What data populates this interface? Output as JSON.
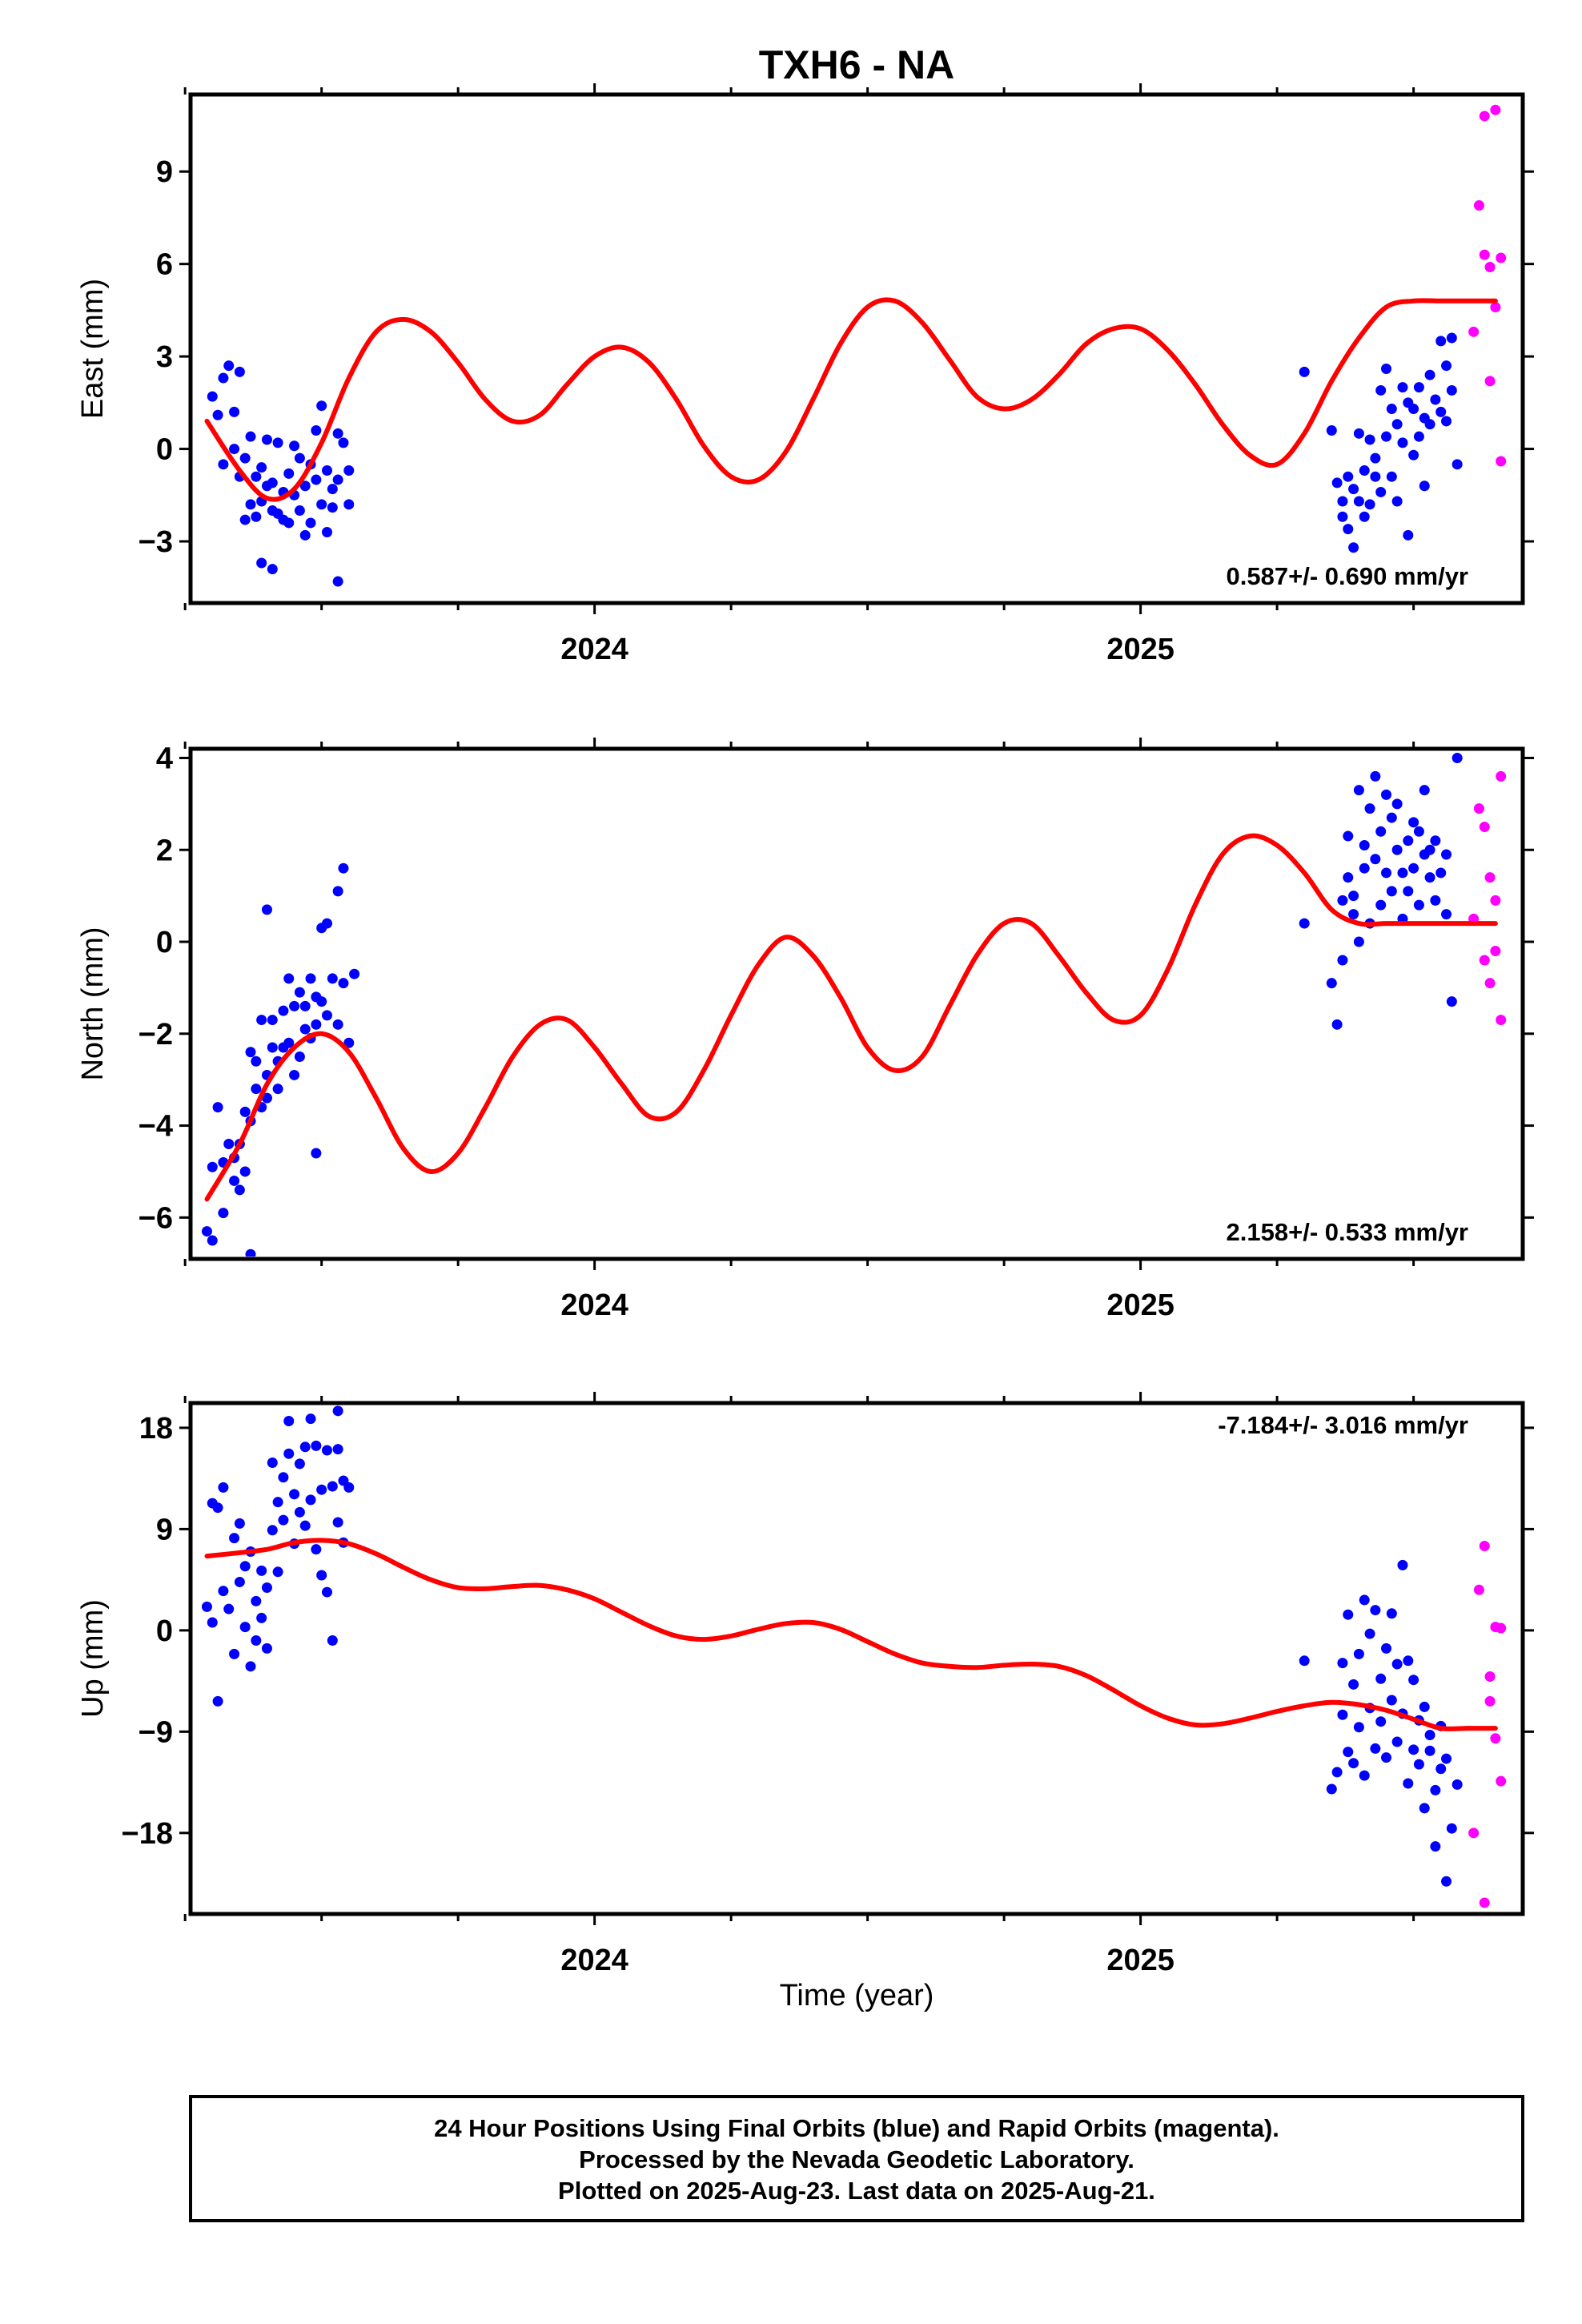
{
  "title": "TXH6 - NA",
  "xlabel": "Time (year)",
  "x_tick_labels": [
    "2024",
    "2025"
  ],
  "colors": {
    "final": "#0000ff",
    "rapid": "#ff00ff",
    "model": "#ff0000",
    "frame": "#000000"
  },
  "footer": {
    "line1": "24 Hour Positions Using Final Orbits (blue) and Rapid Orbits (magenta).",
    "line2": "Processed by the Nevada Geodetic Laboratory.",
    "line3": "Plotted on 2025-Aug-23. Last data on 2025-Aug-21."
  },
  "chart_data": [
    {
      "type": "scatter",
      "ylabel": "East (mm)",
      "rate": "0.587+/- 0.690 mm/yr",
      "xlim": [
        2023.26,
        2025.7
      ],
      "ylim": [
        -5.0,
        11.5
      ],
      "yticks": [
        -3,
        0,
        3,
        6,
        9
      ],
      "ytick_labels": [
        "−3",
        "0",
        "3",
        "6",
        "9"
      ],
      "model": {
        "name": "model fit",
        "x": [
          2023.29,
          2023.35,
          2023.4,
          2023.45,
          2023.5,
          2023.55,
          2023.6,
          2023.65,
          2023.7,
          2023.75,
          2023.8,
          2023.85,
          2023.9,
          2023.95,
          2024.0,
          2024.05,
          2024.1,
          2024.15,
          2024.2,
          2024.25,
          2024.3,
          2024.35,
          2024.4,
          2024.45,
          2024.5,
          2024.55,
          2024.6,
          2024.65,
          2024.7,
          2024.75,
          2024.8,
          2024.85,
          2024.9,
          2024.95,
          2025.0,
          2025.05,
          2025.1,
          2025.15,
          2025.2,
          2025.25,
          2025.3,
          2025.35,
          2025.4,
          2025.45,
          2025.5,
          2025.55,
          2025.6,
          2025.65
        ],
        "y": [
          0.9,
          -0.7,
          -1.6,
          -1.3,
          0.2,
          2.3,
          3.8,
          4.2,
          3.8,
          2.8,
          1.6,
          0.9,
          1.1,
          2.1,
          3.0,
          3.3,
          2.8,
          1.6,
          0.1,
          -0.9,
          -1.0,
          -0.1,
          1.6,
          3.4,
          4.6,
          4.8,
          4.1,
          2.9,
          1.7,
          1.3,
          1.6,
          2.4,
          3.4,
          3.9,
          3.9,
          3.2,
          2.1,
          0.8,
          -0.2,
          -0.5,
          0.5,
          2.2,
          3.6,
          4.6,
          4.8,
          4.8,
          4.8,
          4.8
        ]
      },
      "series": [
        {
          "name": "Final Orbits",
          "x": [
            2023.3,
            2023.31,
            2023.32,
            2023.32,
            2023.33,
            2023.34,
            2023.34,
            2023.35,
            2023.35,
            2023.36,
            2023.36,
            2023.37,
            2023.37,
            2023.38,
            2023.38,
            2023.39,
            2023.39,
            2023.4,
            2023.4,
            2023.41,
            2023.41,
            2023.42,
            2023.42,
            2023.43,
            2023.43,
            2023.44,
            2023.44,
            2023.45,
            2023.45,
            2023.46,
            2023.46,
            2023.47,
            2023.47,
            2023.48,
            2023.48,
            2023.49,
            2023.49,
            2023.5,
            2023.5,
            2023.51,
            2023.51,
            2023.52,
            2023.52,
            2023.53,
            2023.53,
            2023.54,
            2023.55,
            2023.55,
            2023.41,
            2023.39,
            2023.53,
            2025.3,
            2025.35,
            2025.36,
            2025.37,
            2025.37,
            2025.38,
            2025.38,
            2025.39,
            2025.39,
            2025.4,
            2025.4,
            2025.41,
            2025.41,
            2025.42,
            2025.42,
            2025.43,
            2025.43,
            2025.44,
            2025.44,
            2025.45,
            2025.45,
            2025.46,
            2025.46,
            2025.47,
            2025.47,
            2025.48,
            2025.48,
            2025.49,
            2025.49,
            2025.5,
            2025.5,
            2025.51,
            2025.51,
            2025.52,
            2025.52,
            2025.53,
            2025.53,
            2025.54,
            2025.55,
            2025.55,
            2025.56,
            2025.56,
            2025.57,
            2025.57,
            2025.58
          ],
          "y": [
            1.7,
            1.1,
            2.3,
            -0.5,
            2.7,
            1.2,
            0.0,
            2.5,
            -0.9,
            -0.3,
            -2.3,
            -1.8,
            0.4,
            -0.9,
            -2.2,
            -0.6,
            -1.7,
            0.3,
            -1.2,
            -2.0,
            -1.1,
            -2.1,
            0.2,
            -1.4,
            -2.3,
            -0.8,
            -2.4,
            0.1,
            -1.5,
            -2.0,
            -0.3,
            -2.8,
            -1.2,
            -0.5,
            -2.4,
            0.6,
            -1.0,
            -1.8,
            1.4,
            -2.7,
            -0.7,
            -1.9,
            -1.3,
            0.5,
            -1.0,
            0.2,
            -1.8,
            -0.7,
            -3.9,
            -3.7,
            -4.3,
            2.5,
            0.6,
            -1.1,
            -1.7,
            -2.2,
            -0.9,
            -2.6,
            -1.3,
            -3.2,
            0.5,
            -1.7,
            -0.7,
            -2.2,
            0.3,
            -1.8,
            -0.3,
            -0.9,
            1.9,
            -1.4,
            2.6,
            0.4,
            1.3,
            -0.9,
            0.8,
            -1.7,
            2.0,
            0.2,
            1.5,
            -2.8,
            1.3,
            -0.2,
            2.0,
            0.4,
            1.0,
            -1.2,
            2.4,
            0.8,
            1.6,
            3.5,
            1.2,
            2.7,
            0.9,
            3.6,
            1.9,
            -0.5
          ]
        },
        {
          "name": "Rapid Orbits",
          "x": [
            2025.61,
            2025.62,
            2025.63,
            2025.63,
            2025.64,
            2025.64,
            2025.65,
            2025.65,
            2025.66,
            2025.66
          ],
          "y": [
            3.8,
            7.9,
            10.8,
            6.3,
            5.9,
            2.2,
            11.0,
            4.6,
            6.2,
            -0.4
          ]
        }
      ]
    },
    {
      "type": "scatter",
      "ylabel": "North (mm)",
      "rate": "2.158+/- 0.533 mm/yr",
      "xlim": [
        2023.26,
        2025.7
      ],
      "ylim": [
        -6.9,
        4.2
      ],
      "yticks": [
        -6,
        -4,
        -2,
        0,
        2,
        4
      ],
      "ytick_labels": [
        "−6",
        "−4",
        "−2",
        "0",
        "2",
        "4"
      ],
      "model": {
        "name": "model fit",
        "x": [
          2023.29,
          2023.35,
          2023.4,
          2023.45,
          2023.5,
          2023.55,
          2023.6,
          2023.65,
          2023.7,
          2023.75,
          2023.8,
          2023.85,
          2023.9,
          2023.95,
          2024.0,
          2024.05,
          2024.1,
          2024.15,
          2024.2,
          2024.25,
          2024.3,
          2024.35,
          2024.4,
          2024.45,
          2024.5,
          2024.55,
          2024.6,
          2024.65,
          2024.7,
          2024.75,
          2024.8,
          2024.85,
          2024.9,
          2024.95,
          2025.0,
          2025.05,
          2025.1,
          2025.15,
          2025.2,
          2025.25,
          2025.3,
          2025.35,
          2025.4,
          2025.45,
          2025.5,
          2025.55,
          2025.6,
          2025.65
        ],
        "y": [
          -5.6,
          -4.4,
          -3.1,
          -2.3,
          -2.0,
          -2.4,
          -3.4,
          -4.5,
          -5.0,
          -4.6,
          -3.6,
          -2.5,
          -1.8,
          -1.7,
          -2.3,
          -3.1,
          -3.8,
          -3.7,
          -2.8,
          -1.6,
          -0.5,
          0.1,
          -0.3,
          -1.2,
          -2.3,
          -2.8,
          -2.5,
          -1.4,
          -0.3,
          0.4,
          0.4,
          -0.3,
          -1.1,
          -1.7,
          -1.6,
          -0.6,
          0.8,
          1.9,
          2.3,
          2.1,
          1.5,
          0.7,
          0.4,
          0.4,
          0.4,
          0.4,
          0.4,
          0.4
        ]
      },
      "series": [
        {
          "name": "Final Orbits",
          "x": [
            2023.29,
            2023.3,
            2023.3,
            2023.31,
            2023.32,
            2023.32,
            2023.33,
            2023.34,
            2023.34,
            2023.35,
            2023.35,
            2023.36,
            2023.36,
            2023.37,
            2023.37,
            2023.38,
            2023.38,
            2023.39,
            2023.39,
            2023.4,
            2023.4,
            2023.41,
            2023.41,
            2023.42,
            2023.42,
            2023.43,
            2023.43,
            2023.44,
            2023.44,
            2023.45,
            2023.45,
            2023.46,
            2023.46,
            2023.47,
            2023.47,
            2023.48,
            2023.48,
            2023.49,
            2023.49,
            2023.5,
            2023.5,
            2023.51,
            2023.51,
            2023.52,
            2023.53,
            2023.53,
            2023.54,
            2023.54,
            2023.55,
            2023.56,
            2023.37,
            2023.4,
            2023.49,
            2025.3,
            2025.35,
            2025.36,
            2025.37,
            2025.37,
            2025.38,
            2025.38,
            2025.39,
            2025.39,
            2025.4,
            2025.4,
            2025.41,
            2025.41,
            2025.42,
            2025.42,
            2025.43,
            2025.43,
            2025.44,
            2025.44,
            2025.45,
            2025.45,
            2025.46,
            2025.46,
            2025.47,
            2025.47,
            2025.48,
            2025.48,
            2025.49,
            2025.49,
            2025.5,
            2025.5,
            2025.51,
            2025.51,
            2025.52,
            2025.52,
            2025.53,
            2025.53,
            2025.54,
            2025.54,
            2025.55,
            2025.56,
            2025.56,
            2025.57,
            2025.58
          ],
          "y": [
            -6.3,
            -4.9,
            -6.5,
            -3.6,
            -4.8,
            -5.9,
            -4.4,
            -4.7,
            -5.2,
            -4.4,
            -5.4,
            -3.7,
            -5.0,
            -2.4,
            -3.9,
            -2.6,
            -3.2,
            -1.7,
            -3.6,
            -2.9,
            -3.4,
            -2.3,
            -1.7,
            -2.6,
            -3.2,
            -1.5,
            -2.3,
            -0.8,
            -2.2,
            -1.4,
            -2.9,
            -1.1,
            -2.5,
            -1.9,
            -1.4,
            -0.8,
            -2.1,
            -1.2,
            -1.8,
            -1.3,
            0.3,
            -1.6,
            0.4,
            -0.8,
            1.1,
            -1.8,
            1.6,
            -0.9,
            -2.2,
            -0.7,
            -6.8,
            0.7,
            -4.6,
            0.4,
            -0.9,
            -1.8,
            0.9,
            -0.4,
            1.4,
            2.3,
            0.6,
            1.0,
            3.3,
            0.0,
            2.1,
            1.6,
            2.9,
            0.4,
            1.8,
            3.6,
            2.4,
            0.8,
            3.2,
            1.5,
            2.7,
            1.1,
            2.0,
            3.0,
            1.5,
            0.5,
            2.2,
            1.1,
            2.6,
            1.6,
            2.4,
            0.8,
            1.9,
            3.3,
            1.4,
            2.0,
            0.9,
            2.2,
            1.5,
            0.6,
            1.9,
            -1.3,
            4.0
          ]
        },
        {
          "name": "Rapid Orbits",
          "x": [
            2025.61,
            2025.62,
            2025.63,
            2025.63,
            2025.64,
            2025.64,
            2025.65,
            2025.65,
            2025.66,
            2025.66
          ],
          "y": [
            0.5,
            2.9,
            -0.4,
            2.5,
            1.4,
            -0.9,
            0.9,
            -0.2,
            3.6,
            -1.7
          ]
        }
      ]
    },
    {
      "type": "scatter",
      "ylabel": "Up (mm)",
      "rate": "-7.184+/- 3.016 mm/yr",
      "xlim": [
        2023.26,
        2025.7
      ],
      "ylim": [
        -25.2,
        20.2
      ],
      "yticks": [
        -18,
        -9,
        0,
        9,
        18
      ],
      "ytick_labels": [
        "−18",
        "−9",
        "0",
        "9",
        "18"
      ],
      "model": {
        "name": "model fit",
        "x": [
          2023.29,
          2023.35,
          2023.4,
          2023.45,
          2023.5,
          2023.55,
          2023.6,
          2023.65,
          2023.7,
          2023.75,
          2023.8,
          2023.85,
          2023.9,
          2023.95,
          2024.0,
          2024.05,
          2024.1,
          2024.15,
          2024.2,
          2024.25,
          2024.3,
          2024.35,
          2024.4,
          2024.45,
          2024.5,
          2024.55,
          2024.6,
          2024.65,
          2024.7,
          2024.75,
          2024.8,
          2024.85,
          2024.9,
          2024.95,
          2025.0,
          2025.05,
          2025.1,
          2025.15,
          2025.2,
          2025.25,
          2025.3,
          2025.35,
          2025.4,
          2025.45,
          2025.5,
          2025.55,
          2025.6,
          2025.65
        ],
        "y": [
          6.6,
          6.9,
          7.2,
          7.8,
          8.0,
          7.7,
          6.8,
          5.6,
          4.5,
          3.8,
          3.7,
          3.9,
          4.0,
          3.6,
          2.8,
          1.6,
          0.4,
          -0.5,
          -0.8,
          -0.5,
          0.1,
          0.6,
          0.7,
          0.1,
          -1.0,
          -2.1,
          -2.9,
          -3.2,
          -3.3,
          -3.1,
          -3.0,
          -3.2,
          -4.0,
          -5.3,
          -6.7,
          -7.8,
          -8.4,
          -8.3,
          -7.8,
          -7.2,
          -6.7,
          -6.4,
          -6.6,
          -7.1,
          -7.9,
          -8.7,
          -8.7,
          -8.7
        ]
      },
      "series": [
        {
          "name": "Final Orbits",
          "x": [
            2023.29,
            2023.3,
            2023.3,
            2023.31,
            2023.32,
            2023.32,
            2023.33,
            2023.34,
            2023.34,
            2023.35,
            2023.35,
            2023.36,
            2023.36,
            2023.37,
            2023.37,
            2023.38,
            2023.38,
            2023.39,
            2023.39,
            2023.4,
            2023.4,
            2023.41,
            2023.41,
            2023.42,
            2023.42,
            2023.43,
            2023.43,
            2023.44,
            2023.44,
            2023.45,
            2023.45,
            2023.46,
            2023.46,
            2023.47,
            2023.47,
            2023.48,
            2023.48,
            2023.49,
            2023.49,
            2023.5,
            2023.5,
            2023.51,
            2023.51,
            2023.52,
            2023.52,
            2023.53,
            2023.53,
            2023.54,
            2023.54,
            2023.55,
            2023.31,
            2023.53,
            2025.3,
            2025.35,
            2025.36,
            2025.37,
            2025.37,
            2025.38,
            2025.38,
            2025.39,
            2025.39,
            2025.4,
            2025.4,
            2025.41,
            2025.41,
            2025.42,
            2025.42,
            2025.43,
            2025.43,
            2025.44,
            2025.44,
            2025.45,
            2025.45,
            2025.46,
            2025.46,
            2025.47,
            2025.47,
            2025.48,
            2025.48,
            2025.49,
            2025.49,
            2025.5,
            2025.5,
            2025.51,
            2025.51,
            2025.52,
            2025.52,
            2025.53,
            2025.53,
            2025.54,
            2025.54,
            2025.55,
            2025.55,
            2025.56,
            2025.56,
            2025.57,
            2025.58
          ],
          "y": [
            2.1,
            11.3,
            0.7,
            10.9,
            3.5,
            12.7,
            1.9,
            8.2,
            -2.1,
            4.3,
            9.5,
            0.3,
            5.7,
            -3.2,
            7.0,
            2.6,
            -0.9,
            5.3,
            1.1,
            3.8,
            -1.6,
            8.9,
            14.9,
            11.4,
            5.2,
            13.6,
            9.8,
            15.7,
            18.6,
            12.1,
            7.7,
            10.5,
            14.8,
            16.3,
            9.3,
            18.8,
            11.6,
            7.2,
            16.4,
            12.5,
            4.9,
            16.0,
            3.4,
            12.8,
            -0.9,
            16.1,
            19.5,
            7.8,
            13.3,
            12.7,
            -6.3,
            9.6,
            -2.7,
            -14.1,
            -12.6,
            -7.5,
            -2.9,
            -10.8,
            1.4,
            -4.8,
            -11.8,
            -2.1,
            -8.6,
            -12.9,
            2.7,
            -6.9,
            -0.3,
            -10.5,
            1.8,
            -4.3,
            -8.1,
            -1.6,
            -11.3,
            1.5,
            -6.2,
            -3.0,
            -9.9,
            5.8,
            -7.4,
            -13.6,
            -2.7,
            -10.6,
            -4.4,
            -8.0,
            -11.9,
            -15.8,
            -6.8,
            -10.7,
            -9.3,
            -14.2,
            -19.2,
            -12.3,
            -8.5,
            -11.4,
            -22.3,
            -17.6,
            -13.7
          ]
        },
        {
          "name": "Rapid Orbits",
          "x": [
            2025.61,
            2025.62,
            2025.63,
            2025.63,
            2025.64,
            2025.64,
            2025.65,
            2025.65,
            2025.66,
            2025.66
          ],
          "y": [
            -18.0,
            3.6,
            -24.2,
            7.5,
            -4.1,
            -6.3,
            0.3,
            -9.6,
            0.2,
            -13.4
          ]
        }
      ]
    }
  ]
}
